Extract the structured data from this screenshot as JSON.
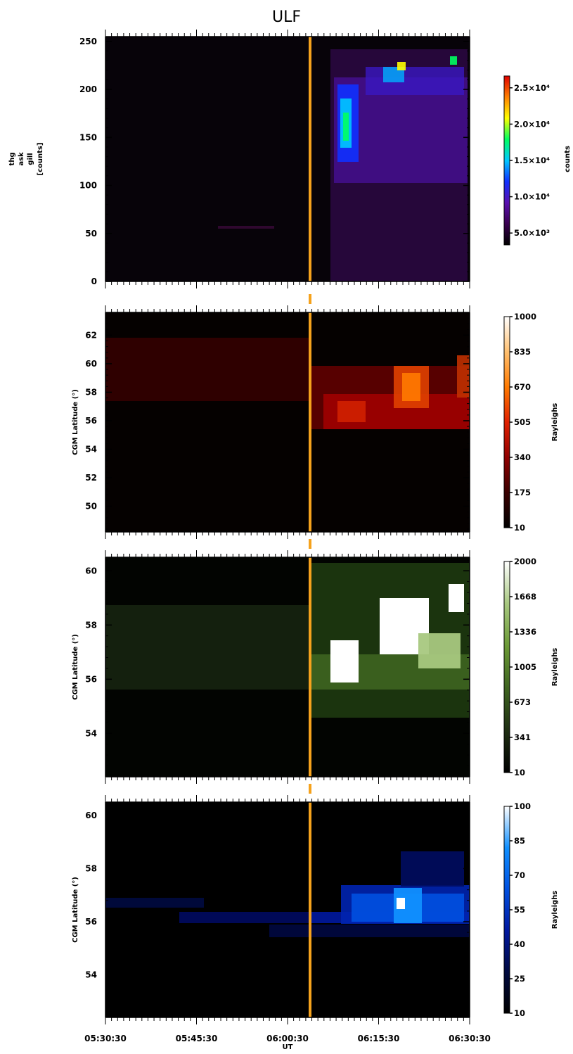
{
  "title": "ULF",
  "colors": {
    "marker": "#f5a21d",
    "background": "#ffffff",
    "frame": "#000000"
  },
  "chart_data": [
    {
      "panel": "thg_ask_gill",
      "type": "heatmap",
      "ylabel": [
        "thg",
        "ask",
        "gill",
        "[counts]"
      ],
      "ylim": [
        0,
        255
      ],
      "yticks": [
        0,
        50,
        100,
        150,
        200,
        250
      ],
      "colorbar": {
        "label": "counts",
        "ticks": [
          "5.0×10³",
          "1.0×10⁴",
          "1.5×10⁴",
          "2.0×10⁴",
          "2.5×10⁴"
        ],
        "colors": [
          "#000000",
          "#3a0050",
          "#5a10b0",
          "#1030ff",
          "#00c8ff",
          "#00ff60",
          "#ffff00",
          "#ff8000",
          "#e00000"
        ]
      }
    },
    {
      "panel": "red_keogram",
      "type": "heatmap",
      "ylabel": "CGM Latitude (°)",
      "ylim": [
        48.2,
        63.6
      ],
      "yticks": [
        50,
        52,
        54,
        56,
        58,
        60,
        62
      ],
      "colorbar": {
        "label": "Rayleighs",
        "ticks": [
          "10",
          "175",
          "340",
          "505",
          "670",
          "835",
          "1000"
        ],
        "colors": [
          "#000000",
          "#3a0000",
          "#900000",
          "#e02000",
          "#ff7a00",
          "#ffc070",
          "#ffffff"
        ]
      }
    },
    {
      "panel": "green_keogram",
      "type": "heatmap",
      "ylabel": "CGM Latitude (°)",
      "ylim": [
        52.4,
        60.5
      ],
      "yticks": [
        54,
        56,
        58,
        60
      ],
      "colorbar": {
        "label": "Rayleighs",
        "ticks": [
          "10",
          "341",
          "673",
          "1005",
          "1336",
          "1668",
          "2000"
        ],
        "colors": [
          "#000000",
          "#1e2e12",
          "#3e6420",
          "#6c9a36",
          "#a8c880",
          "#ffffff"
        ]
      }
    },
    {
      "panel": "blue_keogram",
      "type": "heatmap",
      "ylabel": "CGM Latitude (°)",
      "ylim": [
        52.4,
        60.5
      ],
      "yticks": [
        54,
        56,
        58,
        60
      ],
      "xticks": [
        "05:30:30",
        "05:45:30",
        "06:00:30",
        "06:15:30",
        "06:30:30"
      ],
      "xlabel": "UT",
      "colorbar": {
        "label": "Rayleighs",
        "ticks": [
          "10",
          "25",
          "40",
          "55",
          "70",
          "85",
          "100"
        ],
        "colors": [
          "#000000",
          "#000a40",
          "#0018a0",
          "#0050e0",
          "#1090ff",
          "#ffffff"
        ]
      }
    }
  ]
}
